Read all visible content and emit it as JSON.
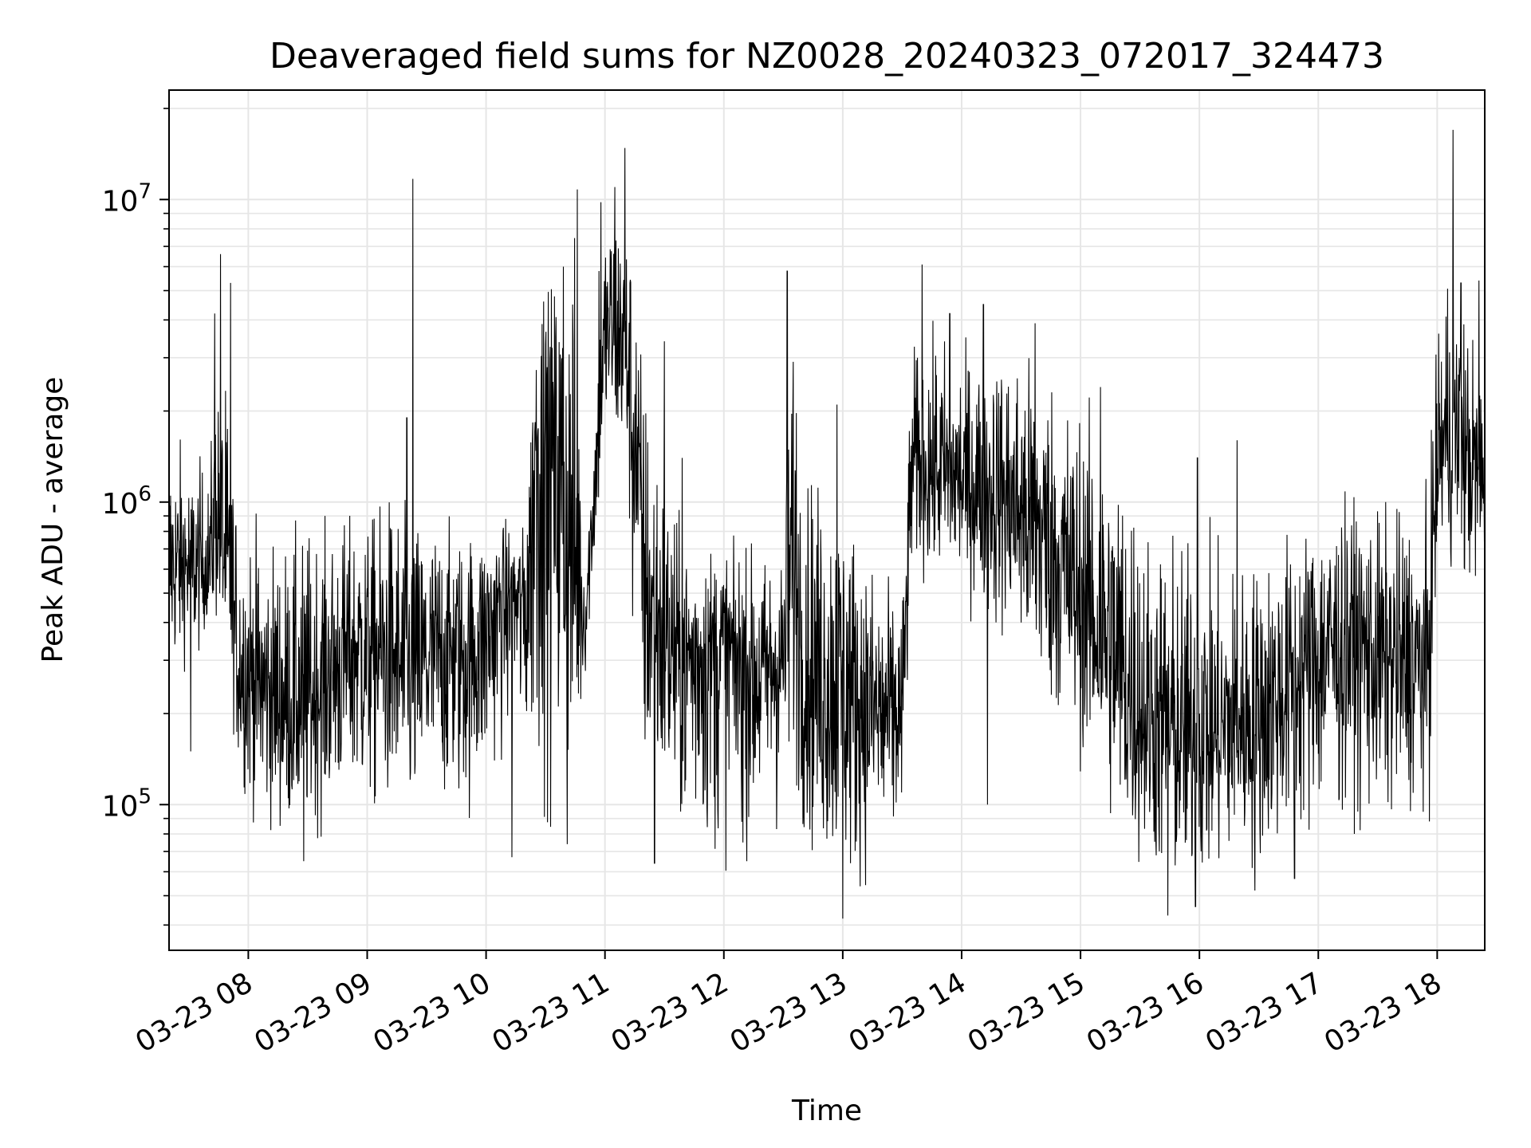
{
  "chart_data": {
    "type": "line",
    "title": "Deaveraged field sums for NZ0028_20240323_072017_324473",
    "xlabel": "Time",
    "ylabel": "Peak ADU - average",
    "yscale": "log",
    "ylim": [
      33000,
      23000000
    ],
    "xlim": [
      "2024-03-23 07:20",
      "2024-03-23 18:24"
    ],
    "grid": true,
    "grid_color": "#e6e6e6",
    "line_color": "#000000",
    "legend": "none",
    "x_ticks": [
      {
        "t": "2024-03-23 08:00",
        "label": "03-23 08"
      },
      {
        "t": "2024-03-23 09:00",
        "label": "03-23 09"
      },
      {
        "t": "2024-03-23 10:00",
        "label": "03-23 10"
      },
      {
        "t": "2024-03-23 11:00",
        "label": "03-23 11"
      },
      {
        "t": "2024-03-23 12:00",
        "label": "03-23 12"
      },
      {
        "t": "2024-03-23 13:00",
        "label": "03-23 13"
      },
      {
        "t": "2024-03-23 14:00",
        "label": "03-23 14"
      },
      {
        "t": "2024-03-23 15:00",
        "label": "03-23 15"
      },
      {
        "t": "2024-03-23 16:00",
        "label": "03-23 16"
      },
      {
        "t": "2024-03-23 17:00",
        "label": "03-23 17"
      },
      {
        "t": "2024-03-23 18:00",
        "label": "03-23 18"
      }
    ],
    "y_ticks": [
      {
        "value": 100000,
        "base": "10",
        "exp": "5"
      },
      {
        "value": 1000000,
        "base": "10",
        "exp": "6"
      },
      {
        "value": 10000000,
        "base": "10",
        "exp": "7"
      }
    ],
    "series": [
      {
        "x": [
          "2024-03-23 07:20",
          "2024-03-23 07:35",
          "2024-03-23 07:40",
          "2024-03-23 07:45",
          "2024-03-23 07:50",
          "2024-03-23 07:55",
          "2024-03-23 08:00",
          "2024-03-23 08:10",
          "2024-03-23 08:20",
          "2024-03-23 08:30",
          "2024-03-23 08:40",
          "2024-03-23 08:50",
          "2024-03-23 09:00",
          "2024-03-23 09:10",
          "2024-03-23 09:20",
          "2024-03-23 09:30",
          "2024-03-23 09:40",
          "2024-03-23 09:50",
          "2024-03-23 10:00",
          "2024-03-23 10:10",
          "2024-03-23 10:20",
          "2024-03-23 10:25",
          "2024-03-23 10:35",
          "2024-03-23 10:45",
          "2024-03-23 10:50",
          "2024-03-23 11:00",
          "2024-03-23 11:05",
          "2024-03-23 11:10",
          "2024-03-23 11:15",
          "2024-03-23 11:20",
          "2024-03-23 11:30",
          "2024-03-23 11:40",
          "2024-03-23 11:50",
          "2024-03-23 12:00",
          "2024-03-23 12:10",
          "2024-03-23 12:20",
          "2024-03-23 12:30",
          "2024-03-23 12:35",
          "2024-03-23 12:40",
          "2024-03-23 12:50",
          "2024-03-23 13:00",
          "2024-03-23 13:10",
          "2024-03-23 13:20",
          "2024-03-23 13:30",
          "2024-03-23 13:35",
          "2024-03-23 13:45",
          "2024-03-23 13:55",
          "2024-03-23 14:05",
          "2024-03-23 14:15",
          "2024-03-23 14:25",
          "2024-03-23 14:35",
          "2024-03-23 14:45",
          "2024-03-23 14:55",
          "2024-03-23 15:05",
          "2024-03-23 15:15",
          "2024-03-23 15:25",
          "2024-03-23 15:35",
          "2024-03-23 15:45",
          "2024-03-23 15:55",
          "2024-03-23 16:05",
          "2024-03-23 16:15",
          "2024-03-23 16:25",
          "2024-03-23 16:35",
          "2024-03-23 16:45",
          "2024-03-23 16:55",
          "2024-03-23 17:05",
          "2024-03-23 17:15",
          "2024-03-23 17:25",
          "2024-03-23 17:35",
          "2024-03-23 17:45",
          "2024-03-23 17:55",
          "2024-03-23 18:00",
          "2024-03-23 18:05",
          "2024-03-23 18:10",
          "2024-03-23 18:15",
          "2024-03-23 18:20",
          "2024-03-23 18:24"
        ],
        "center": [
          600000,
          600000,
          600000,
          900000,
          500000,
          300000,
          260000,
          230000,
          210000,
          220000,
          270000,
          320000,
          350000,
          300000,
          270000,
          300000,
          330000,
          310000,
          380000,
          500000,
          480000,
          1600000,
          1700000,
          600000,
          400000,
          3500000,
          4000000,
          3500000,
          1800000,
          500000,
          350000,
          300000,
          330000,
          330000,
          300000,
          280000,
          320000,
          700000,
          300000,
          260000,
          250000,
          220000,
          200000,
          210000,
          1300000,
          1300000,
          1200000,
          1150000,
          1100000,
          1000000,
          900000,
          700000,
          520000,
          420000,
          330000,
          230000,
          190000,
          170000,
          160000,
          160000,
          180000,
          190000,
          210000,
          250000,
          300000,
          340000,
          360000,
          330000,
          300000,
          280000,
          260000,
          1500000,
          1600000,
          1700000,
          1400000,
          1200000,
          1100000
        ],
        "low": [
          250000,
          300000,
          400000,
          350000,
          250000,
          120000,
          90000,
          80000,
          75000,
          75000,
          80000,
          85000,
          80000,
          85000,
          75000,
          80000,
          90000,
          85000,
          100000,
          150000,
          120000,
          100000,
          80000,
          100000,
          250000,
          1500000,
          1200000,
          1000000,
          500000,
          100000,
          80000,
          70000,
          65000,
          60000,
          65000,
          65000,
          80000,
          120000,
          70000,
          55000,
          45000,
          55000,
          50000,
          60000,
          600000,
          500000,
          500000,
          400000,
          350000,
          300000,
          200000,
          180000,
          150000,
          110000,
          80000,
          60000,
          55000,
          45000,
          45000,
          50000,
          55000,
          55000,
          60000,
          65000,
          70000,
          75000,
          80000,
          80000,
          80000,
          90000,
          90000,
          500000,
          600000,
          500000,
          450000,
          500000,
          500000
        ],
        "high": [
          1800000,
          1500000,
          1300000,
          4000000,
          2500000,
          900000,
          1000000,
          800000,
          850000,
          900000,
          900000,
          950000,
          900000,
          1200000,
          1000000,
          950000,
          900000,
          880000,
          900000,
          900000,
          850000,
          5000000,
          6000000,
          9000000,
          700000,
          9000000,
          11000000,
          9000000,
          7000000,
          3000000,
          1500000,
          800000,
          800000,
          800000,
          750000,
          700000,
          750000,
          5500000,
          1500000,
          1300000,
          1200000,
          800000,
          600000,
          500000,
          3500000,
          4000000,
          3500000,
          3500000,
          3500000,
          3500000,
          3300000,
          3000000,
          2500000,
          2200000,
          1800000,
          1500000,
          900000,
          900000,
          850000,
          900000,
          700000,
          700000,
          800000,
          850000,
          950000,
          1000000,
          1100000,
          1000000,
          1000000,
          1100000,
          1200000,
          3500000,
          7000000,
          5000000,
          4500000,
          3500000,
          3500000
        ],
        "spikes": [
          {
            "t": "2024-03-23 07:20",
            "value": 2000000
          },
          {
            "t": "2024-03-23 07:31",
            "value": 150000
          },
          {
            "t": "2024-03-23 07:43",
            "value": 4200000
          },
          {
            "t": "2024-03-23 07:46",
            "value": 6600000
          },
          {
            "t": "2024-03-23 07:51",
            "value": 5300000
          },
          {
            "t": "2024-03-23 08:28",
            "value": 65000
          },
          {
            "t": "2024-03-23 09:20",
            "value": 1900000
          },
          {
            "t": "2024-03-23 09:23",
            "value": 11700000
          },
          {
            "t": "2024-03-23 10:13",
            "value": 67000
          },
          {
            "t": "2024-03-23 10:29",
            "value": 4600000
          },
          {
            "t": "2024-03-23 10:39",
            "value": 6000000
          },
          {
            "t": "2024-03-23 10:41",
            "value": 74000
          },
          {
            "t": "2024-03-23 10:46",
            "value": 10800000
          },
          {
            "t": "2024-03-23 10:57",
            "value": 5800000
          },
          {
            "t": "2024-03-23 10:58",
            "value": 9800000
          },
          {
            "t": "2024-03-23 11:05",
            "value": 11000000
          },
          {
            "t": "2024-03-23 11:10",
            "value": 14800000
          },
          {
            "t": "2024-03-23 11:14",
            "value": 420000
          },
          {
            "t": "2024-03-23 11:30",
            "value": 3400000
          },
          {
            "t": "2024-03-23 11:25",
            "value": 64000
          },
          {
            "t": "2024-03-23 11:39",
            "value": 1400000
          },
          {
            "t": "2024-03-23 12:32",
            "value": 5800000
          },
          {
            "t": "2024-03-23 12:57",
            "value": 2100000
          },
          {
            "t": "2024-03-23 13:00",
            "value": 42000
          },
          {
            "t": "2024-03-23 13:40",
            "value": 6100000
          },
          {
            "t": "2024-03-23 13:54",
            "value": 4200000
          },
          {
            "t": "2024-03-23 14:11",
            "value": 4500000
          },
          {
            "t": "2024-03-23 14:13",
            "value": 100000
          },
          {
            "t": "2024-03-23 14:37",
            "value": 3900000
          },
          {
            "t": "2024-03-23 15:10",
            "value": 2400000
          },
          {
            "t": "2024-03-23 15:44",
            "value": 43000
          },
          {
            "t": "2024-03-23 15:59",
            "value": 1400000
          },
          {
            "t": "2024-03-23 15:58",
            "value": 46000
          },
          {
            "t": "2024-03-23 16:19",
            "value": 1600000
          },
          {
            "t": "2024-03-23 16:28",
            "value": 52000
          },
          {
            "t": "2024-03-23 16:48",
            "value": 57000
          },
          {
            "t": "2024-03-23 17:56",
            "value": 88000
          },
          {
            "t": "2024-03-23 18:08",
            "value": 17000000
          },
          {
            "t": "2024-03-23 18:12",
            "value": 5300000
          },
          {
            "t": "2024-03-23 18:21",
            "value": 5400000
          }
        ]
      }
    ]
  }
}
